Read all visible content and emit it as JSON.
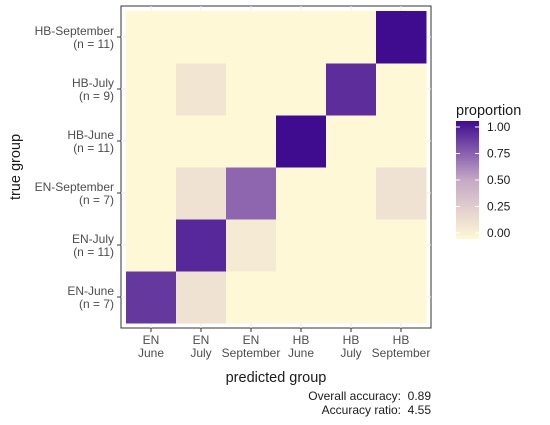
{
  "chart_data": {
    "type": "heatmap",
    "xlabel": "predicted group",
    "ylabel": "true group",
    "x_categories": [
      [
        "EN",
        "June"
      ],
      [
        "EN",
        "July"
      ],
      [
        "EN",
        "September"
      ],
      [
        "HB",
        "June"
      ],
      [
        "HB",
        "July"
      ],
      [
        "HB",
        "September"
      ]
    ],
    "y_categories_bottom_to_top": [
      [
        "EN-June",
        "(n = 7)"
      ],
      [
        "EN-July",
        "(n = 11)"
      ],
      [
        "EN-September",
        "(n = 7)"
      ],
      [
        "HB-June",
        "(n = 11)"
      ],
      [
        "HB-July",
        "(n = 9)"
      ],
      [
        "HB-September",
        "(n = 11)"
      ]
    ],
    "values_rows_bottom_to_top": [
      [
        0.86,
        0.14,
        0,
        0,
        0,
        0
      ],
      [
        0,
        0.91,
        0.09,
        0,
        0,
        0
      ],
      [
        0,
        0.14,
        0.71,
        0,
        0,
        0.14
      ],
      [
        0,
        0,
        0,
        1.0,
        0,
        0
      ],
      [
        0,
        0.11,
        0,
        0,
        0.89,
        0
      ],
      [
        0,
        0,
        0,
        0,
        0,
        1.0
      ]
    ],
    "legend": {
      "title": "proportion",
      "ticks": [
        "0.00",
        "0.25",
        "0.50",
        "0.75",
        "1.00"
      ],
      "tick_values": [
        0,
        0.25,
        0.5,
        0.75,
        1.0
      ],
      "position": "right"
    },
    "colors": {
      "low": "#fff8d6",
      "mid": "#c6a8c6",
      "high": "#3f0c8f"
    },
    "grid": true
  },
  "captions": {
    "accuracy_label": "Overall accuracy:",
    "accuracy_value": "0.89",
    "ratio_label": "Accuracy ratio:",
    "ratio_value": "4.55"
  }
}
